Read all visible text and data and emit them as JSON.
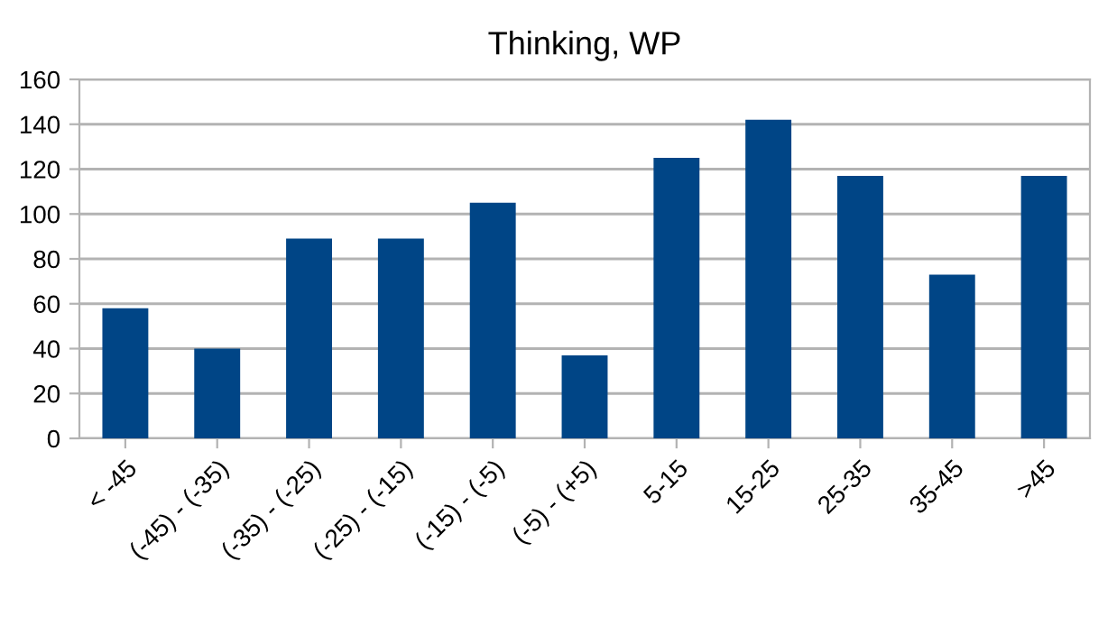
{
  "chart_data": {
    "type": "bar",
    "title": "Thinking, WP",
    "categories": [
      "< -45",
      "(-45) - (-35)",
      "(-35) - (-25)",
      "(-25) - (-15)",
      "(-15) - (-5)",
      "(-5) - (+5)",
      "5-15",
      "15-25",
      "25-35",
      "35-45",
      ">45"
    ],
    "values": [
      58,
      40,
      89,
      89,
      105,
      37,
      125,
      142,
      117,
      73,
      117
    ],
    "color": "#004586",
    "ylim": [
      0,
      160
    ],
    "yticks": [
      0,
      20,
      40,
      60,
      80,
      100,
      120,
      140,
      160
    ],
    "grid": "y",
    "legend": false
  }
}
